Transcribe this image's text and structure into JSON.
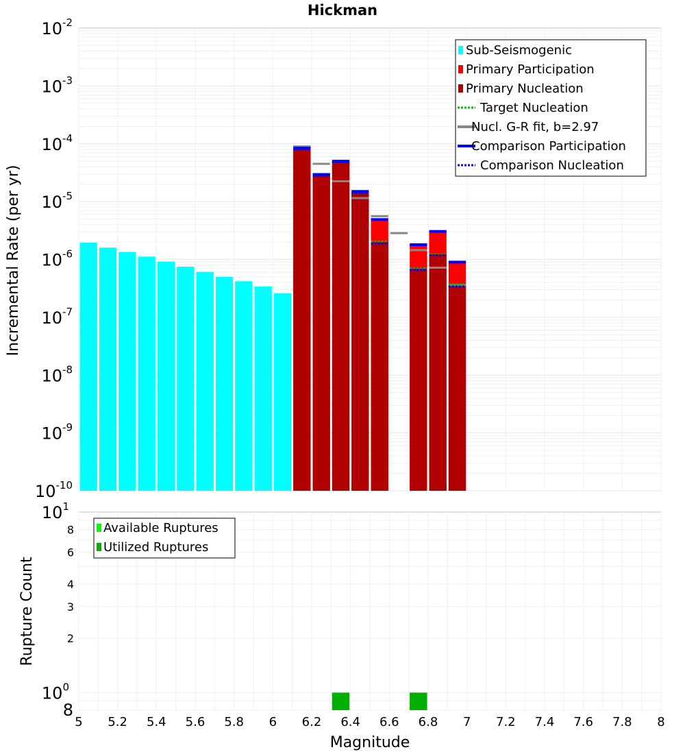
{
  "chart_data": [
    {
      "type": "bar",
      "title": "Hickman",
      "xlabel": "",
      "ylabel": "Incremental Rate (per yr)",
      "xlim": [
        5,
        8
      ],
      "ylim": [
        1e-10,
        0.01
      ],
      "yscale": "log",
      "y_major_ticks": [
        {
          "base": "10",
          "exp": "-2",
          "value": 0.01
        },
        {
          "base": "10",
          "exp": "-3",
          "value": 0.001
        },
        {
          "base": "10",
          "exp": "-4",
          "value": 0.0001
        },
        {
          "base": "10",
          "exp": "-5",
          "value": 1e-05
        },
        {
          "base": "10",
          "exp": "-6",
          "value": 1e-06
        },
        {
          "base": "10",
          "exp": "-7",
          "value": 1e-07
        },
        {
          "base": "10",
          "exp": "-8",
          "value": 1e-08
        },
        {
          "base": "10",
          "exp": "-9",
          "value": 1e-09
        },
        {
          "base": "10",
          "exp": "-10",
          "value": 1e-10
        }
      ],
      "legend": [
        {
          "label": "Sub-Seismogenic",
          "style": "box",
          "color": "#00ffff"
        },
        {
          "label": "Primary Participation",
          "style": "box",
          "color": "#ff0000"
        },
        {
          "label": "Primary Nucleation",
          "style": "box",
          "color": "#b00000"
        },
        {
          "label": "Target Nucleation",
          "style": "dotted",
          "color": "#00c000"
        },
        {
          "label": "Nucl. G-R fit, b=2.97",
          "style": "solid",
          "color": "#888888"
        },
        {
          "label": "Comparison Participation",
          "style": "solid",
          "color": "#0000ff"
        },
        {
          "label": "Comparison Nucleation",
          "style": "dotted",
          "color": "#0000ff"
        }
      ],
      "legend_position": "top-right",
      "series": [
        {
          "name": "Sub-Seismogenic",
          "color": "#00ffff",
          "x": [
            5.05,
            5.15,
            5.25,
            5.35,
            5.45,
            5.55,
            5.65,
            5.75,
            5.85,
            5.95,
            6.05
          ],
          "values": [
            1.95e-06,
            1.6e-06,
            1.35e-06,
            1.12e-06,
            9.2e-07,
            7.5e-07,
            6.1e-07,
            5e-07,
            4.2e-07,
            3.4e-07,
            2.6e-07
          ]
        },
        {
          "name": "Primary Participation",
          "color": "#ff0000",
          "x": [
            6.15,
            6.25,
            6.35,
            6.45,
            6.55,
            6.75,
            6.85,
            6.95
          ],
          "values": [
            8.2e-05,
            2.9e-05,
            4.9e-05,
            1.45e-05,
            4.7e-06,
            1.75e-06,
            2.95e-06,
            8.8e-07
          ]
        },
        {
          "name": "Primary Nucleation",
          "color": "#b00000",
          "x": [
            6.15,
            6.25,
            6.35,
            6.45,
            6.55,
            6.75,
            6.85,
            6.95
          ],
          "values": [
            8.2e-05,
            2.9e-05,
            4.9e-05,
            1.45e-05,
            2e-06,
            6.8e-07,
            1.2e-06,
            3.6e-07
          ]
        },
        {
          "name": "Target Nucleation",
          "color": "#00c000",
          "x": [
            6.15,
            6.25,
            6.35,
            6.45,
            6.55,
            6.75,
            6.85,
            6.95
          ],
          "values": [
            8e-05,
            2.8e-05,
            4.8e-05,
            1.42e-05,
            2.05e-06,
            7e-07,
            1.22e-06,
            3.7e-07
          ]
        },
        {
          "name": "Nucl. G-R fit, b=2.97",
          "color": "#888888",
          "x": [
            6.15,
            6.25,
            6.35,
            6.45,
            6.55,
            6.65,
            6.75,
            6.85,
            6.95
          ],
          "values": [
            9e-05,
            4.5e-05,
            2.25e-05,
            1.15e-05,
            5.6e-06,
            2.85e-06,
            1.45e-06,
            7.2e-07,
            3.6e-07
          ]
        },
        {
          "name": "Comparison Participation",
          "color": "#0000ff",
          "x": [
            6.15,
            6.25,
            6.35,
            6.45,
            6.55,
            6.75,
            6.85,
            6.95
          ],
          "values": [
            8.4e-05,
            2.95e-05,
            5e-05,
            1.5e-05,
            4.9e-06,
            1.8e-06,
            3.05e-06,
            9e-07
          ]
        },
        {
          "name": "Comparison Nucleation",
          "color": "#0000ff",
          "x": [
            6.15,
            6.25,
            6.35,
            6.45,
            6.55,
            6.75,
            6.85,
            6.95
          ],
          "values": [
            8e-05,
            2.8e-05,
            4.8e-05,
            1.42e-05,
            1.9e-06,
            6.6e-07,
            1.18e-06,
            3.4e-07
          ]
        }
      ]
    },
    {
      "type": "bar",
      "title": "",
      "xlabel": "Magnitude",
      "ylabel": "Rupture Count",
      "xlim": [
        5,
        8
      ],
      "ylim": [
        0.8,
        10
      ],
      "yscale": "log",
      "x_ticks": [
        "5",
        "5.2",
        "5.4",
        "5.6",
        "5.8",
        "6",
        "6.2",
        "6.4",
        "6.6",
        "6.8",
        "7",
        "7.2",
        "7.4",
        "7.6",
        "7.8",
        "8"
      ],
      "y_major_ticks": [
        {
          "base": "10",
          "exp": "1",
          "value": 10
        },
        {
          "base": "10",
          "exp": "0",
          "value": 1
        }
      ],
      "y_minor_ticks": [
        {
          "label": "8",
          "value": 8
        },
        {
          "label": "6",
          "value": 6
        },
        {
          "label": "4",
          "value": 4
        },
        {
          "label": "3",
          "value": 3
        },
        {
          "label": "2",
          "value": 2
        },
        {
          "label": "8",
          "value": 0.8
        }
      ],
      "legend": [
        {
          "label": "Available Ruptures",
          "style": "box",
          "color": "#00ff00"
        },
        {
          "label": "Utilized Ruptures",
          "style": "box",
          "color": "#00b000"
        }
      ],
      "legend_position": "top-left",
      "series": [
        {
          "name": "Utilized Ruptures",
          "color": "#00b000",
          "x": [
            6.35,
            6.75
          ],
          "values": [
            1,
            1
          ]
        }
      ]
    }
  ]
}
